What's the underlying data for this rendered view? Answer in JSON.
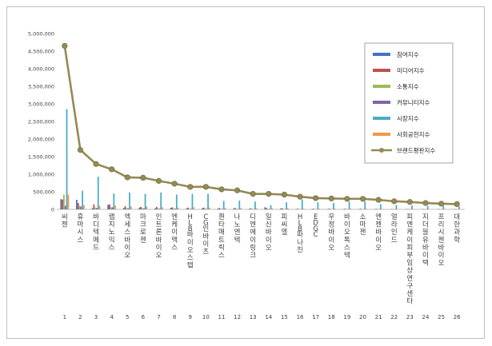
{
  "chart_data": {
    "type": "bar",
    "title": "",
    "xlabel": "",
    "ylabel": "",
    "ylim": [
      0,
      5000000
    ],
    "yticks": [
      "0",
      "500,000",
      "1,000,000",
      "1,500,000",
      "2,000,000",
      "2,500,000",
      "3,000,000",
      "3,500,000",
      "4,000,000",
      "4,500,000",
      "5,000,000"
    ],
    "legend_position": "top-right",
    "grid": false,
    "ranks": [
      "1",
      "2",
      "3",
      "4",
      "5",
      "6",
      "7",
      "8",
      "9",
      "10",
      "11",
      "12",
      "13",
      "14",
      "15",
      "16",
      "17",
      "18",
      "19",
      "20",
      "21",
      "22",
      "23",
      "24",
      "25",
      "26"
    ],
    "categories": [
      "씨젠",
      "휴마시스",
      "바디텍메드",
      "랩지노믹스",
      "엑세스바이오",
      "마크로젠",
      "인트론바이오",
      "엔케이맥스",
      "HLB바이오스텝",
      "CG인바이츠",
      "퀀타매트릭스",
      "나노엔텍",
      "디엔에이링크",
      "일신바이오",
      "피씨엘",
      "HLB파나진",
      "EDGC",
      "우정바이오",
      "바이오톡스텍",
      "소마젠",
      "엔젠바이오",
      "얼라인드",
      "피엔케이피부임상연구센타",
      "지더블유바이텍",
      "프리시젠바이오",
      "대한과학"
    ],
    "series": [
      {
        "name": "참여지수",
        "color": "#4472c4",
        "values": [
          290000,
          270000,
          30000,
          130000,
          40000,
          50000,
          30000,
          40000,
          25000,
          30000,
          20000,
          20000,
          15000,
          60000,
          25000,
          10000,
          10000,
          10000,
          8000,
          10000,
          8000,
          5000,
          5000,
          5000,
          5000,
          4000
        ]
      },
      {
        "name": "미디어지수",
        "color": "#c0504d",
        "values": [
          280000,
          180000,
          140000,
          140000,
          90000,
          70000,
          70000,
          60000,
          50000,
          50000,
          40000,
          40000,
          30000,
          40000,
          30000,
          20000,
          20000,
          20000,
          20000,
          20000,
          15000,
          10000,
          10000,
          10000,
          10000,
          8000
        ]
      },
      {
        "name": "소통지수",
        "color": "#9bbb59",
        "values": [
          420000,
          100000,
          50000,
          60000,
          30000,
          30000,
          25000,
          25000,
          20000,
          20000,
          15000,
          15000,
          12000,
          15000,
          12000,
          8000,
          8000,
          8000,
          8000,
          8000,
          6000,
          5000,
          5000,
          5000,
          5000,
          4000
        ]
      },
      {
        "name": "커뮤니티지수",
        "color": "#8064a2",
        "values": [
          100000,
          80000,
          40000,
          60000,
          30000,
          30000,
          20000,
          20000,
          15000,
          15000,
          12000,
          10000,
          10000,
          12000,
          10000,
          6000,
          6000,
          6000,
          6000,
          6000,
          5000,
          4000,
          4000,
          4000,
          4000,
          3000
        ]
      },
      {
        "name": "시장지수",
        "color": "#4bacc6",
        "values": [
          2850000,
          530000,
          930000,
          450000,
          480000,
          440000,
          480000,
          420000,
          440000,
          440000,
          240000,
          250000,
          220000,
          120000,
          200000,
          280000,
          200000,
          180000,
          220000,
          230000,
          150000,
          120000,
          110000,
          100000,
          100000,
          80000
        ]
      },
      {
        "name": "사회공헌지수",
        "color": "#f79646",
        "values": [
          420000,
          120000,
          100000,
          110000,
          80000,
          80000,
          60000,
          50000,
          60000,
          50000,
          40000,
          40000,
          30000,
          30000,
          30000,
          20000,
          20000,
          20000,
          20000,
          20000,
          15000,
          10000,
          10000,
          10000,
          10000,
          8000
        ]
      }
    ],
    "line": {
      "name": "브랜드평판지수",
      "color": "#948a54",
      "values": [
        4650000,
        1690000,
        1290000,
        1140000,
        910000,
        900000,
        810000,
        730000,
        640000,
        640000,
        570000,
        540000,
        440000,
        440000,
        420000,
        360000,
        320000,
        310000,
        300000,
        300000,
        270000,
        230000,
        210000,
        180000,
        160000,
        150000
      ]
    }
  }
}
